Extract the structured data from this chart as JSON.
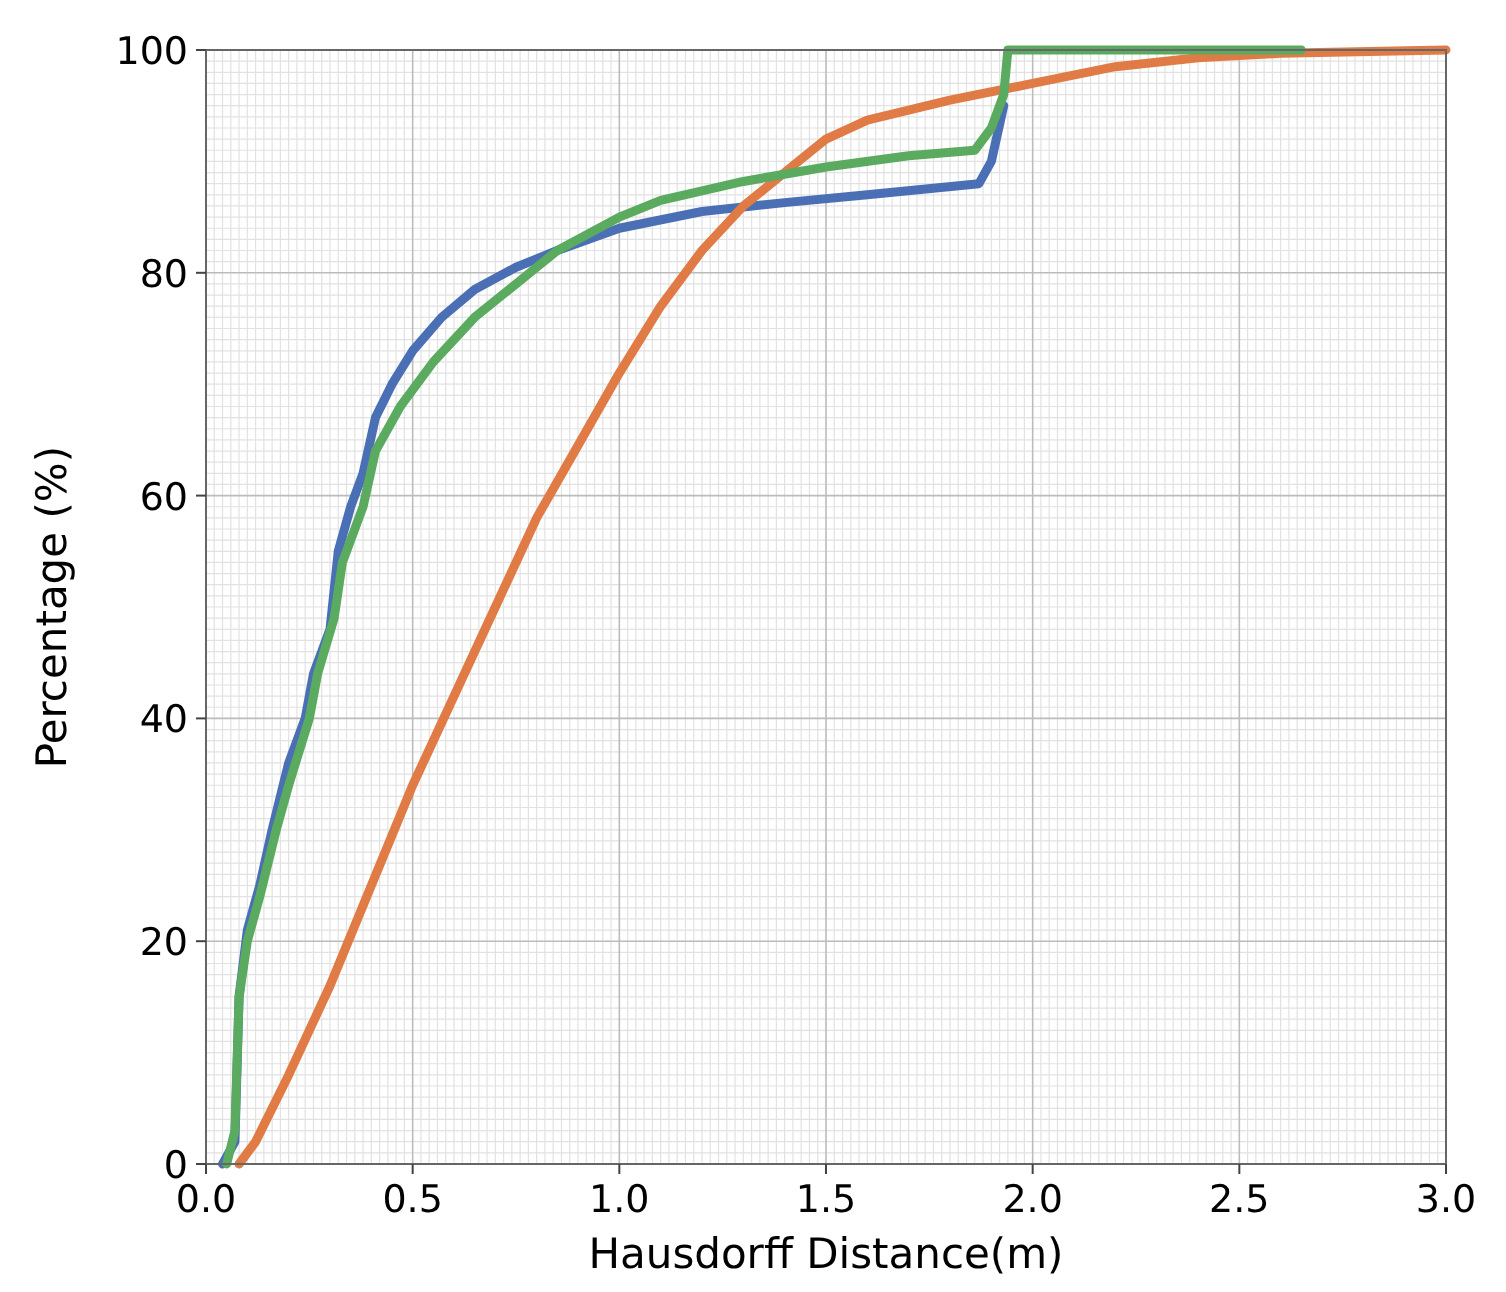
{
  "chart_data": {
    "type": "line",
    "xlabel": "Hausdorff Distance(m)",
    "ylabel": "Percentage (%)",
    "xlim": [
      0,
      3
    ],
    "ylim": [
      0,
      100
    ],
    "xticks": [
      {
        "value": 0,
        "label": "0.0"
      },
      {
        "value": 0.5,
        "label": "0.5"
      },
      {
        "value": 1,
        "label": "1.0"
      },
      {
        "value": 1.5,
        "label": "1.5"
      },
      {
        "value": 2,
        "label": "2.0"
      },
      {
        "value": 2.5,
        "label": "2.5"
      },
      {
        "value": 3,
        "label": "3.0"
      }
    ],
    "yticks": [
      0,
      20,
      40,
      60,
      80,
      100
    ],
    "grid": true,
    "line_style": "solid",
    "series": [
      {
        "color": "#4a6fb5",
        "x": [
          0.04,
          0.07,
          0.08,
          0.1,
          0.13,
          0.16,
          0.2,
          0.24,
          0.26,
          0.3,
          0.32,
          0.35,
          0.38,
          0.41,
          0.45,
          0.5,
          0.57,
          0.65,
          0.75,
          0.85,
          1.0,
          1.2,
          1.4,
          1.6,
          1.87,
          1.9,
          1.93
        ],
        "values": [
          0,
          2,
          15,
          21,
          25,
          30,
          36,
          40,
          44,
          48,
          55,
          59,
          62,
          67,
          70,
          73,
          76,
          78.5,
          80.5,
          82,
          84,
          85.5,
          86.3,
          87,
          88,
          90,
          95
        ]
      },
      {
        "color": "#e07b45",
        "x": [
          0.08,
          0.12,
          0.2,
          0.3,
          0.4,
          0.5,
          0.6,
          0.7,
          0.8,
          0.9,
          1.0,
          1.1,
          1.2,
          1.3,
          1.4,
          1.5,
          1.6,
          1.8,
          2.0,
          2.2,
          2.4,
          2.6,
          3.0
        ],
        "values": [
          0,
          2,
          8,
          16,
          25,
          34,
          42,
          50,
          58,
          64.5,
          71,
          77,
          82,
          86,
          89,
          92,
          93.7,
          95.5,
          97,
          98.5,
          99.3,
          99.7,
          100
        ]
      },
      {
        "color": "#5aab5f",
        "x": [
          0.05,
          0.07,
          0.08,
          0.1,
          0.13,
          0.17,
          0.2,
          0.25,
          0.27,
          0.31,
          0.33,
          0.38,
          0.41,
          0.47,
          0.55,
          0.65,
          0.75,
          0.85,
          1.0,
          1.1,
          1.3,
          1.5,
          1.7,
          1.86,
          1.9,
          1.93,
          1.94,
          2.65
        ],
        "values": [
          0,
          3,
          15,
          20,
          24,
          30,
          34,
          40,
          44,
          49,
          54,
          59,
          64,
          68,
          72,
          76,
          79,
          82,
          85,
          86.5,
          88.2,
          89.5,
          90.5,
          91,
          93,
          96,
          100,
          100
        ]
      }
    ]
  }
}
